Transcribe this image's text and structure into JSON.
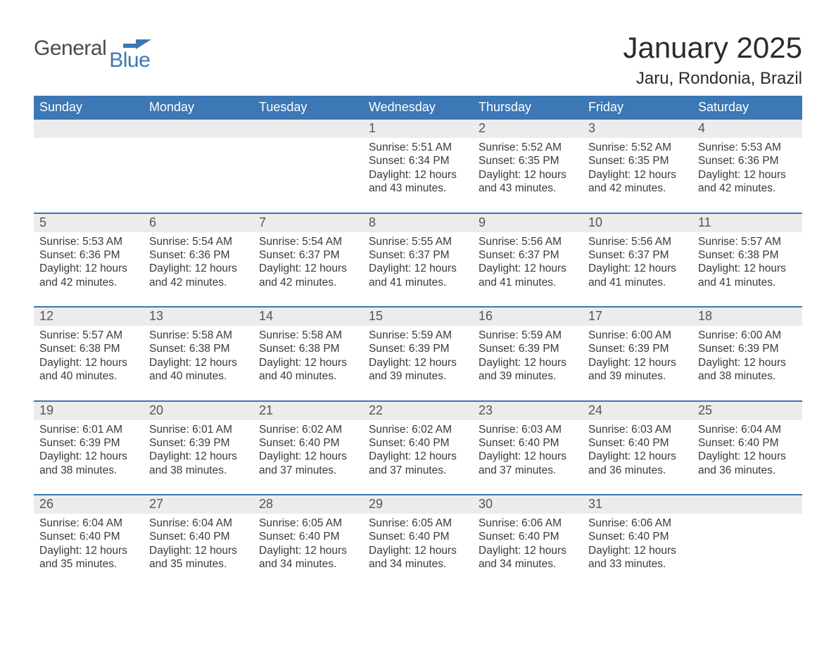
{
  "logo": {
    "general": "General",
    "blue": "Blue"
  },
  "title": "January 2025",
  "subtitle": "Jaru, Rondonia, Brazil",
  "colors": {
    "brand_blue": "#3b78b5",
    "row_grey": "#ececec",
    "text_dark": "#3a3a3a",
    "background": "#ffffff"
  },
  "typography": {
    "title_fontsize": 42,
    "subtitle_fontsize": 24,
    "weekday_fontsize": 18,
    "daynum_fontsize": 18,
    "body_fontsize": 15.5
  },
  "weekdays": [
    "Sunday",
    "Monday",
    "Tuesday",
    "Wednesday",
    "Thursday",
    "Friday",
    "Saturday"
  ],
  "weeks": [
    [
      {
        "num": "",
        "sunrise": "",
        "sunset": "",
        "daylight": ""
      },
      {
        "num": "",
        "sunrise": "",
        "sunset": "",
        "daylight": ""
      },
      {
        "num": "",
        "sunrise": "",
        "sunset": "",
        "daylight": ""
      },
      {
        "num": "1",
        "sunrise": "Sunrise: 5:51 AM",
        "sunset": "Sunset: 6:34 PM",
        "daylight": "Daylight: 12 hours and 43 minutes."
      },
      {
        "num": "2",
        "sunrise": "Sunrise: 5:52 AM",
        "sunset": "Sunset: 6:35 PM",
        "daylight": "Daylight: 12 hours and 43 minutes."
      },
      {
        "num": "3",
        "sunrise": "Sunrise: 5:52 AM",
        "sunset": "Sunset: 6:35 PM",
        "daylight": "Daylight: 12 hours and 42 minutes."
      },
      {
        "num": "4",
        "sunrise": "Sunrise: 5:53 AM",
        "sunset": "Sunset: 6:36 PM",
        "daylight": "Daylight: 12 hours and 42 minutes."
      }
    ],
    [
      {
        "num": "5",
        "sunrise": "Sunrise: 5:53 AM",
        "sunset": "Sunset: 6:36 PM",
        "daylight": "Daylight: 12 hours and 42 minutes."
      },
      {
        "num": "6",
        "sunrise": "Sunrise: 5:54 AM",
        "sunset": "Sunset: 6:36 PM",
        "daylight": "Daylight: 12 hours and 42 minutes."
      },
      {
        "num": "7",
        "sunrise": "Sunrise: 5:54 AM",
        "sunset": "Sunset: 6:37 PM",
        "daylight": "Daylight: 12 hours and 42 minutes."
      },
      {
        "num": "8",
        "sunrise": "Sunrise: 5:55 AM",
        "sunset": "Sunset: 6:37 PM",
        "daylight": "Daylight: 12 hours and 41 minutes."
      },
      {
        "num": "9",
        "sunrise": "Sunrise: 5:56 AM",
        "sunset": "Sunset: 6:37 PM",
        "daylight": "Daylight: 12 hours and 41 minutes."
      },
      {
        "num": "10",
        "sunrise": "Sunrise: 5:56 AM",
        "sunset": "Sunset: 6:37 PM",
        "daylight": "Daylight: 12 hours and 41 minutes."
      },
      {
        "num": "11",
        "sunrise": "Sunrise: 5:57 AM",
        "sunset": "Sunset: 6:38 PM",
        "daylight": "Daylight: 12 hours and 41 minutes."
      }
    ],
    [
      {
        "num": "12",
        "sunrise": "Sunrise: 5:57 AM",
        "sunset": "Sunset: 6:38 PM",
        "daylight": "Daylight: 12 hours and 40 minutes."
      },
      {
        "num": "13",
        "sunrise": "Sunrise: 5:58 AM",
        "sunset": "Sunset: 6:38 PM",
        "daylight": "Daylight: 12 hours and 40 minutes."
      },
      {
        "num": "14",
        "sunrise": "Sunrise: 5:58 AM",
        "sunset": "Sunset: 6:38 PM",
        "daylight": "Daylight: 12 hours and 40 minutes."
      },
      {
        "num": "15",
        "sunrise": "Sunrise: 5:59 AM",
        "sunset": "Sunset: 6:39 PM",
        "daylight": "Daylight: 12 hours and 39 minutes."
      },
      {
        "num": "16",
        "sunrise": "Sunrise: 5:59 AM",
        "sunset": "Sunset: 6:39 PM",
        "daylight": "Daylight: 12 hours and 39 minutes."
      },
      {
        "num": "17",
        "sunrise": "Sunrise: 6:00 AM",
        "sunset": "Sunset: 6:39 PM",
        "daylight": "Daylight: 12 hours and 39 minutes."
      },
      {
        "num": "18",
        "sunrise": "Sunrise: 6:00 AM",
        "sunset": "Sunset: 6:39 PM",
        "daylight": "Daylight: 12 hours and 38 minutes."
      }
    ],
    [
      {
        "num": "19",
        "sunrise": "Sunrise: 6:01 AM",
        "sunset": "Sunset: 6:39 PM",
        "daylight": "Daylight: 12 hours and 38 minutes."
      },
      {
        "num": "20",
        "sunrise": "Sunrise: 6:01 AM",
        "sunset": "Sunset: 6:39 PM",
        "daylight": "Daylight: 12 hours and 38 minutes."
      },
      {
        "num": "21",
        "sunrise": "Sunrise: 6:02 AM",
        "sunset": "Sunset: 6:40 PM",
        "daylight": "Daylight: 12 hours and 37 minutes."
      },
      {
        "num": "22",
        "sunrise": "Sunrise: 6:02 AM",
        "sunset": "Sunset: 6:40 PM",
        "daylight": "Daylight: 12 hours and 37 minutes."
      },
      {
        "num": "23",
        "sunrise": "Sunrise: 6:03 AM",
        "sunset": "Sunset: 6:40 PM",
        "daylight": "Daylight: 12 hours and 37 minutes."
      },
      {
        "num": "24",
        "sunrise": "Sunrise: 6:03 AM",
        "sunset": "Sunset: 6:40 PM",
        "daylight": "Daylight: 12 hours and 36 minutes."
      },
      {
        "num": "25",
        "sunrise": "Sunrise: 6:04 AM",
        "sunset": "Sunset: 6:40 PM",
        "daylight": "Daylight: 12 hours and 36 minutes."
      }
    ],
    [
      {
        "num": "26",
        "sunrise": "Sunrise: 6:04 AM",
        "sunset": "Sunset: 6:40 PM",
        "daylight": "Daylight: 12 hours and 35 minutes."
      },
      {
        "num": "27",
        "sunrise": "Sunrise: 6:04 AM",
        "sunset": "Sunset: 6:40 PM",
        "daylight": "Daylight: 12 hours and 35 minutes."
      },
      {
        "num": "28",
        "sunrise": "Sunrise: 6:05 AM",
        "sunset": "Sunset: 6:40 PM",
        "daylight": "Daylight: 12 hours and 34 minutes."
      },
      {
        "num": "29",
        "sunrise": "Sunrise: 6:05 AM",
        "sunset": "Sunset: 6:40 PM",
        "daylight": "Daylight: 12 hours and 34 minutes."
      },
      {
        "num": "30",
        "sunrise": "Sunrise: 6:06 AM",
        "sunset": "Sunset: 6:40 PM",
        "daylight": "Daylight: 12 hours and 34 minutes."
      },
      {
        "num": "31",
        "sunrise": "Sunrise: 6:06 AM",
        "sunset": "Sunset: 6:40 PM",
        "daylight": "Daylight: 12 hours and 33 minutes."
      },
      {
        "num": "",
        "sunrise": "",
        "sunset": "",
        "daylight": ""
      }
    ]
  ]
}
